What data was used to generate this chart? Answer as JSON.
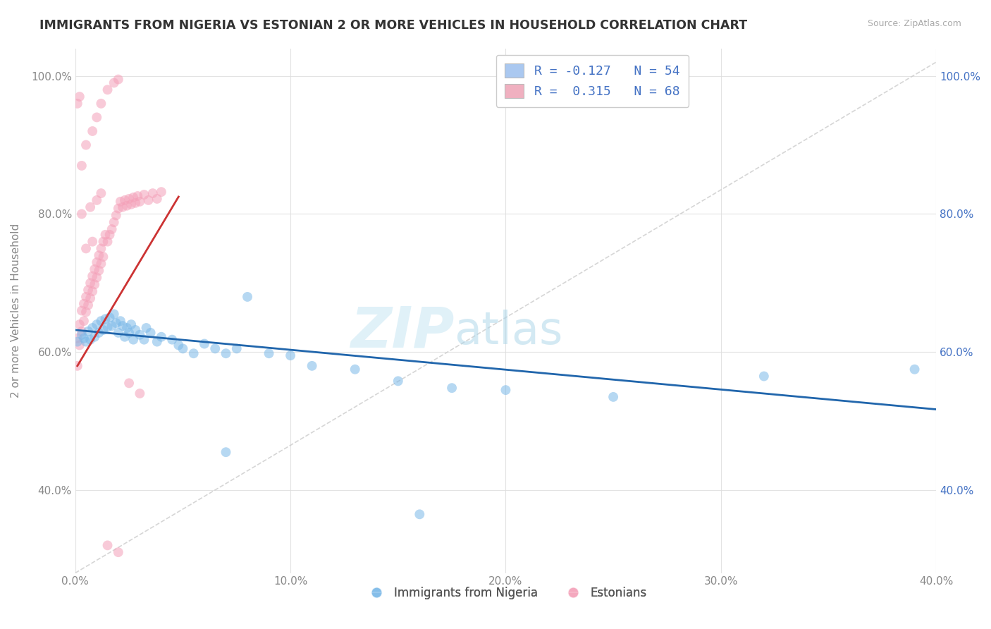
{
  "title": "IMMIGRANTS FROM NIGERIA VS ESTONIAN 2 OR MORE VEHICLES IN HOUSEHOLD CORRELATION CHART",
  "source": "Source: ZipAtlas.com",
  "ylabel": "2 or more Vehicles in Household",
  "xmin": 0.0,
  "xmax": 0.4,
  "ymin": 0.28,
  "ymax": 1.04,
  "xticks": [
    0.0,
    0.1,
    0.2,
    0.3,
    0.4
  ],
  "xticklabels": [
    "0.0%",
    "10.0%",
    "20.0%",
    "30.0%",
    "40.0%"
  ],
  "yticks": [
    0.4,
    0.6,
    0.8,
    1.0
  ],
  "yticklabels": [
    "40.0%",
    "60.0%",
    "80.0%",
    "100.0%"
  ],
  "legend_items": [
    {
      "label": "R = -0.127   N = 54",
      "color": "#aac8f0"
    },
    {
      "label": "R =  0.315   N = 68",
      "color": "#f0b0c0"
    }
  ],
  "legend_labels_bottom": [
    "Immigrants from Nigeria",
    "Estonians"
  ],
  "blue_color": "#7ab8e8",
  "pink_color": "#f4a0b8",
  "blue_line_color": "#2166ac",
  "pink_line_color": "#cc3333",
  "diag_line_color": "#cccccc",
  "watermark_zip": "ZIP",
  "watermark_atlas": "atlas",
  "blue_scatter_x": [
    0.001,
    0.003,
    0.004,
    0.005,
    0.006,
    0.007,
    0.008,
    0.009,
    0.01,
    0.011,
    0.012,
    0.013,
    0.014,
    0.015,
    0.016,
    0.017,
    0.018,
    0.019,
    0.02,
    0.021,
    0.022,
    0.023,
    0.024,
    0.025,
    0.026,
    0.027,
    0.028,
    0.03,
    0.032,
    0.033,
    0.035,
    0.038,
    0.04,
    0.045,
    0.048,
    0.05,
    0.055,
    0.06,
    0.065,
    0.07,
    0.075,
    0.08,
    0.09,
    0.1,
    0.11,
    0.13,
    0.15,
    0.175,
    0.2,
    0.25,
    0.16,
    0.32,
    0.39,
    0.07
  ],
  "blue_scatter_y": [
    0.615,
    0.625,
    0.62,
    0.615,
    0.63,
    0.618,
    0.635,
    0.622,
    0.64,
    0.628,
    0.645,
    0.632,
    0.648,
    0.636,
    0.65,
    0.638,
    0.655,
    0.642,
    0.628,
    0.645,
    0.638,
    0.622,
    0.635,
    0.628,
    0.64,
    0.618,
    0.632,
    0.625,
    0.618,
    0.635,
    0.628,
    0.615,
    0.622,
    0.618,
    0.61,
    0.605,
    0.598,
    0.612,
    0.605,
    0.598,
    0.605,
    0.68,
    0.598,
    0.595,
    0.58,
    0.575,
    0.558,
    0.548,
    0.545,
    0.535,
    0.365,
    0.565,
    0.575,
    0.455
  ],
  "pink_scatter_x": [
    0.001,
    0.001,
    0.002,
    0.002,
    0.003,
    0.003,
    0.004,
    0.004,
    0.005,
    0.005,
    0.006,
    0.006,
    0.007,
    0.007,
    0.008,
    0.008,
    0.009,
    0.009,
    0.01,
    0.01,
    0.011,
    0.011,
    0.012,
    0.012,
    0.013,
    0.013,
    0.014,
    0.015,
    0.016,
    0.017,
    0.018,
    0.019,
    0.02,
    0.021,
    0.022,
    0.023,
    0.024,
    0.025,
    0.026,
    0.027,
    0.028,
    0.029,
    0.03,
    0.032,
    0.034,
    0.036,
    0.038,
    0.04,
    0.003,
    0.005,
    0.008,
    0.01,
    0.012,
    0.015,
    0.018,
    0.02,
    0.025,
    0.03,
    0.015,
    0.02,
    0.005,
    0.008,
    0.003,
    0.007,
    0.01,
    0.012,
    0.001,
    0.002
  ],
  "pink_scatter_y": [
    0.62,
    0.58,
    0.64,
    0.61,
    0.66,
    0.63,
    0.67,
    0.645,
    0.68,
    0.658,
    0.69,
    0.668,
    0.7,
    0.678,
    0.71,
    0.688,
    0.72,
    0.698,
    0.73,
    0.708,
    0.74,
    0.718,
    0.75,
    0.728,
    0.76,
    0.738,
    0.77,
    0.76,
    0.77,
    0.778,
    0.788,
    0.798,
    0.808,
    0.818,
    0.81,
    0.82,
    0.812,
    0.822,
    0.814,
    0.824,
    0.816,
    0.826,
    0.818,
    0.828,
    0.82,
    0.83,
    0.822,
    0.832,
    0.87,
    0.9,
    0.92,
    0.94,
    0.96,
    0.98,
    0.99,
    0.995,
    0.555,
    0.54,
    0.32,
    0.31,
    0.75,
    0.76,
    0.8,
    0.81,
    0.82,
    0.83,
    0.96,
    0.97
  ],
  "blue_line_x0": 0.0,
  "blue_line_x1": 0.4,
  "blue_line_y0": 0.632,
  "blue_line_y1": 0.517,
  "pink_line_x0": 0.001,
  "pink_line_x1": 0.048,
  "pink_line_y0": 0.58,
  "pink_line_y1": 0.825
}
